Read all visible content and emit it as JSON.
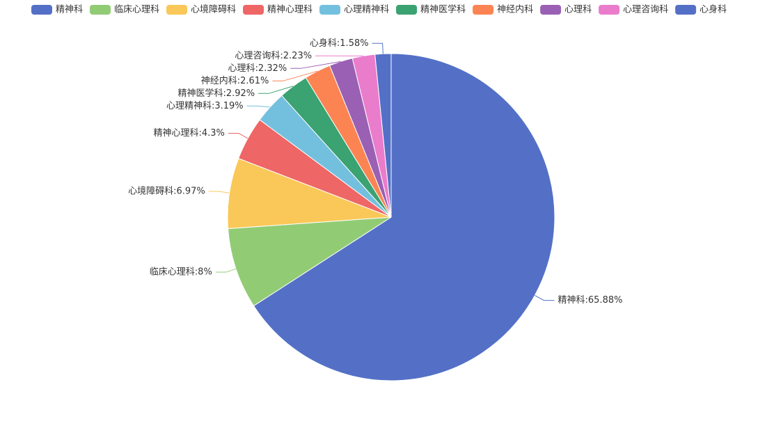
{
  "chart_data": {
    "type": "pie",
    "categories": [
      "精神科",
      "临床心理科",
      "心境障碍科",
      "精神心理科",
      "心理精神科",
      "精神医学科",
      "神经内科",
      "心理科",
      "心理咨询科",
      "心身科"
    ],
    "values": [
      65.88,
      8,
      6.97,
      4.3,
      3.19,
      2.92,
      2.61,
      2.32,
      2.23,
      1.58
    ],
    "value_labels": [
      "精神科:65.88%",
      "临床心理科:8%",
      "心境障碍科:6.97%",
      "精神心理科:4.3%",
      "心理精神科:3.19%",
      "精神医学科:2.92%",
      "神经内科:2.61%",
      "心理科:2.32%",
      "心理咨询科:2.23%",
      "心身科:1.58%"
    ],
    "colors": [
      "#5470c6",
      "#91cc75",
      "#fac858",
      "#ee6666",
      "#73c0de",
      "#3ba272",
      "#fc8452",
      "#9a60b4",
      "#ea7ccc",
      "#5470c6"
    ],
    "legend": "top-left"
  }
}
